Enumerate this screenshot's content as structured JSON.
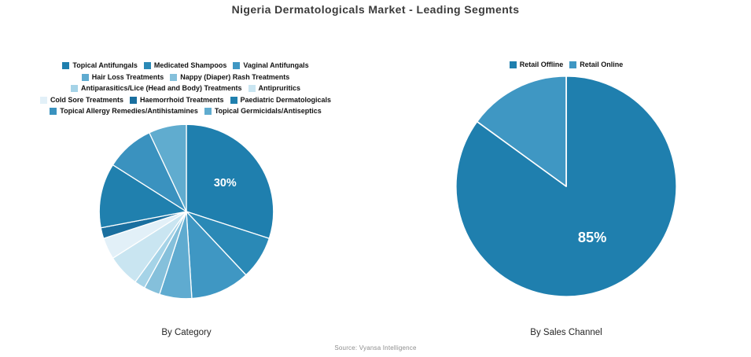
{
  "title": "Nigeria Dermatologicals Market - Leading Segments",
  "source": "Source: Vyansa Intelligence",
  "accent_color": "#1f7fae",
  "chart_data": [
    {
      "type": "pie",
      "title": "By Category",
      "direction": "clockwise",
      "start_angle_deg": 0,
      "legend_position": "top",
      "unit": "%",
      "labels": [
        "Topical Antifungals",
        "Medicated Shampoos",
        "Vaginal Antifungals",
        "Hair Loss Treatments",
        "Nappy (Diaper) Rash Treatments",
        "Antiparasitics/Lice (Head and Body) Treatments",
        "Antipruritics",
        "Cold Sore Treatments",
        "Haemorrhoid Treatments",
        "Paediatric Dermatologicals",
        "Topical Allergy Remedies/Antihistamines",
        "Topical Germicidals/Antiseptics"
      ],
      "values": [
        30,
        8,
        11,
        6,
        3,
        2,
        6,
        4,
        2,
        12,
        9,
        7
      ],
      "colors": [
        "#1f7fae",
        "#2a89b6",
        "#3f97c3",
        "#5fabd0",
        "#85c0db",
        "#a5d3e7",
        "#c9e5f1",
        "#e2f0f8",
        "#1a6f9f",
        "#2080ae",
        "#3a92bf",
        "#60accf"
      ],
      "legend_rows": [
        [
          0,
          1,
          2
        ],
        [
          3,
          4
        ],
        [
          5,
          6
        ],
        [
          7,
          8,
          9
        ],
        [
          10,
          11
        ]
      ],
      "data_labels": [
        {
          "slice": 0,
          "text": "30%",
          "r": 0.55
        }
      ]
    },
    {
      "type": "pie",
      "title": "By Sales Channel",
      "direction": "clockwise",
      "start_angle_deg": 0,
      "legend_position": "top",
      "unit": "%",
      "labels": [
        "Retail Offline",
        "Retail Online"
      ],
      "values": [
        85,
        15
      ],
      "colors": [
        "#1f7fae",
        "#3f97c3"
      ],
      "legend_rows": [
        [
          0,
          1
        ]
      ],
      "data_labels": [
        {
          "slice": 0,
          "text": "85%",
          "r": 0.52
        }
      ]
    }
  ]
}
